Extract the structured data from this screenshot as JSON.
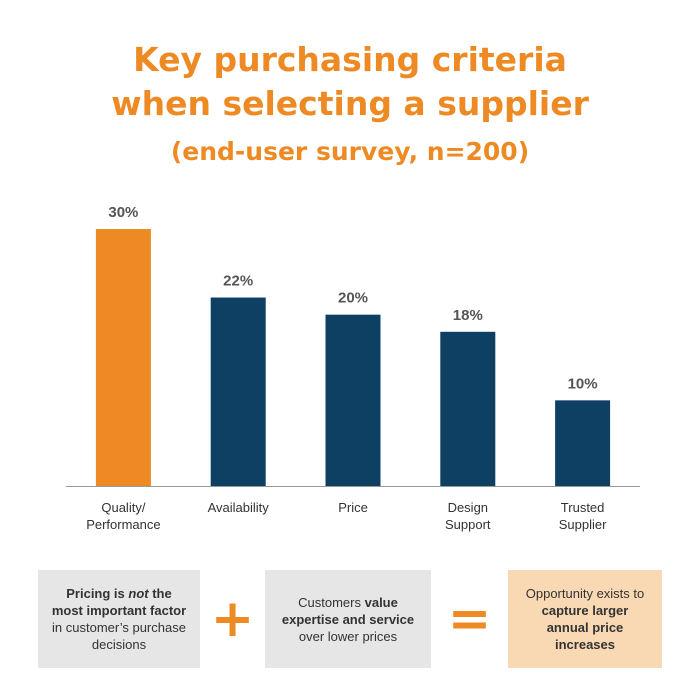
{
  "title": {
    "line1": "Key purchasing criteria",
    "line2": "when selecting a supplier",
    "line3": "(end-user survey, n=200)"
  },
  "colors": {
    "accent": "#ee8a23",
    "bar_primary": "#ee8a23",
    "bar_secondary": "#0e4064",
    "axis": "#999999",
    "box_grey": "#e6e6e6",
    "box_peach": "#f9d9b3"
  },
  "chart_data": {
    "type": "bar",
    "categories": [
      [
        "Quality/",
        "Performance"
      ],
      [
        "Availability"
      ],
      [
        "Price"
      ],
      [
        "Design",
        "Support"
      ],
      [
        "Trusted",
        "Supplier"
      ]
    ],
    "values": [
      30,
      22,
      20,
      18,
      10
    ],
    "data_labels": [
      "30%",
      "22%",
      "20%",
      "18%",
      "10%"
    ],
    "highlight_index": 0,
    "ylim": [
      0,
      30
    ],
    "grid": false,
    "xlabel": "",
    "ylabel": ""
  },
  "summary": {
    "box1": {
      "a": "Pricing is ",
      "b": "not",
      "c": " the most important factor",
      "d": " in customer’s purchase decisions"
    },
    "plus": "+",
    "box2": {
      "a": "Customers ",
      "b": "value expertise and service",
      "c": " over lower prices"
    },
    "equals": "=",
    "box3": {
      "a": "Opportunity exists to ",
      "b": "capture larger annual price increases"
    }
  }
}
